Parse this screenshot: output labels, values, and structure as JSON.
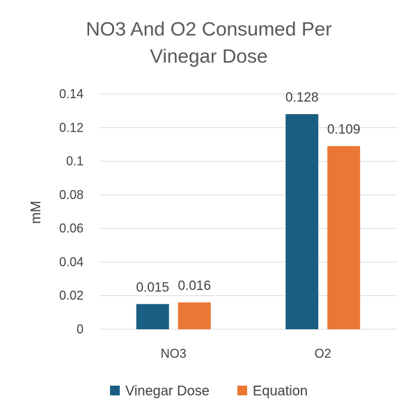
{
  "chart_data": {
    "type": "bar",
    "title": "NO3 And O2 Consumed Per Vinegar Dose",
    "title_lines": [
      "NO3 And O2 Consumed Per",
      "Vinegar Dose"
    ],
    "xlabel": "",
    "ylabel": "mM",
    "categories": [
      "NO3",
      "O2"
    ],
    "series": [
      {
        "name": "Vinegar Dose",
        "values": [
          0.015,
          0.128
        ],
        "labels": [
          "0.015",
          "0.128"
        ],
        "color": "#1a5e82"
      },
      {
        "name": "Equation",
        "values": [
          0.016,
          0.109
        ],
        "labels": [
          "0.016",
          "0.109"
        ],
        "color": "#ec7633"
      }
    ],
    "ylim": [
      0,
      0.14
    ],
    "yticks": [
      0,
      0.02,
      0.04,
      0.06,
      0.08,
      0.1,
      0.12,
      0.14
    ],
    "ytick_labels": [
      "0",
      "0.02",
      "0.04",
      "0.06",
      "0.08",
      "0.1",
      "0.12",
      "0.14"
    ],
    "grid": true,
    "legend_position": "bottom",
    "colors": {
      "gridline": "#d9d9d9",
      "text": "#404040",
      "title": "#595959"
    }
  }
}
